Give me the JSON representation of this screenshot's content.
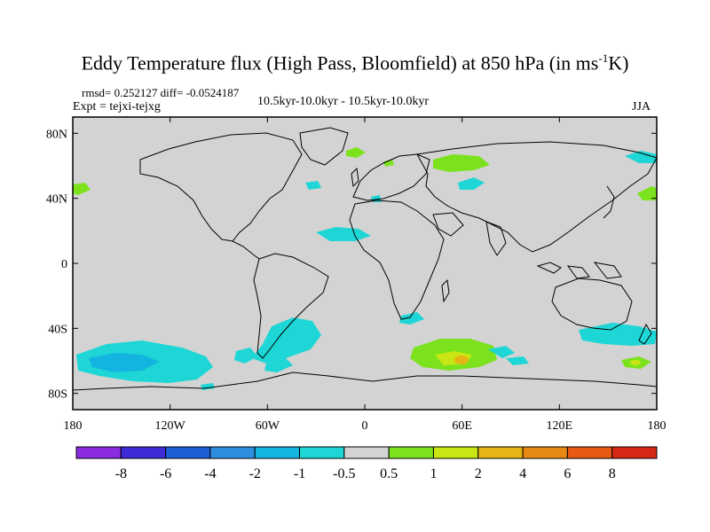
{
  "title": {
    "text": "Eddy Temperature flux (High Pass, Bloomfield) at 850 hPa (in ms",
    "sup": "-1",
    "tail": "K)"
  },
  "stats": {
    "rmsd_label": "rmsd= 0.252127",
    "diff_label": "diff= -0.0524187"
  },
  "experiment": "Expt = tejxi-tejxg",
  "period": "10.5kyr-10.0kyr - 10.5kyr-10.0kyr",
  "season": "JJA",
  "map": {
    "lon_ticks": [
      "180",
      "120W",
      "60W",
      "0",
      "60E",
      "120E",
      "180"
    ],
    "lat_ticks": [
      "80N",
      "40N",
      "0",
      "40S",
      "80S"
    ],
    "land_color": "#d3d3d3"
  },
  "colorbar": {
    "labels": [
      "-8",
      "-6",
      "-4",
      "-2",
      "-1",
      "-0.5",
      "0.5",
      "1",
      "2",
      "4",
      "6",
      "8"
    ],
    "colors": [
      "#8a2be2",
      "#3c2bd6",
      "#1e5fd8",
      "#2e8fe0",
      "#14b4e0",
      "#1ed6d6",
      "#d3d3d3",
      "#7ce21e",
      "#c8e614",
      "#e6b414",
      "#e68a14",
      "#e65a14",
      "#d62814"
    ]
  },
  "chart_data": {
    "type": "heatmap",
    "title": "Eddy Temperature flux (High Pass, Bloomfield) at 850 hPa (in ms-1K)",
    "xlim": [
      -180,
      180
    ],
    "ylim": [
      -90,
      90
    ],
    "x_ticks": [
      "180",
      "120W",
      "60W",
      "0",
      "60E",
      "120E",
      "180"
    ],
    "y_ticks": [
      "80N",
      "40N",
      "0",
      "40S",
      "80S"
    ],
    "levels": [
      -8,
      -6,
      -4,
      -2,
      -1,
      -0.5,
      0.5,
      1,
      2,
      4,
      6,
      8
    ],
    "regions": [
      {
        "lon": [
          -170,
          -110
        ],
        "lat": [
          -60,
          -75
        ],
        "level": "-1"
      },
      {
        "lon": [
          -65,
          -35
        ],
        "lat": [
          -40,
          -60
        ],
        "level": "-1"
      },
      {
        "lon": [
          -30,
          -15
        ],
        "lat": [
          12,
          22
        ],
        "level": "-1"
      },
      {
        "lon": [
          15,
          40
        ],
        "lat": [
          -55,
          -70
        ],
        "level": "1"
      },
      {
        "lon": [
          40,
          70
        ],
        "lat": [
          -60,
          -68
        ],
        "level": "2"
      },
      {
        "lon": [
          40,
          75
        ],
        "lat": [
          58,
          66
        ],
        "level": "1"
      },
      {
        "lon": [
          -10,
          -5
        ],
        "lat": [
          68,
          72
        ],
        "level": "1"
      },
      {
        "lon": [
          135,
          165
        ],
        "lat": [
          -40,
          -48
        ],
        "level": "-1"
      },
      {
        "lon": [
          155,
          175
        ],
        "lat": [
          -60,
          -65
        ],
        "level": "2"
      },
      {
        "lon": [
          165,
          180
        ],
        "lat": [
          40,
          48
        ],
        "level": "1"
      },
      {
        "lon": [
          -180,
          -170
        ],
        "lat": [
          43,
          48
        ],
        "level": "1"
      }
    ]
  }
}
